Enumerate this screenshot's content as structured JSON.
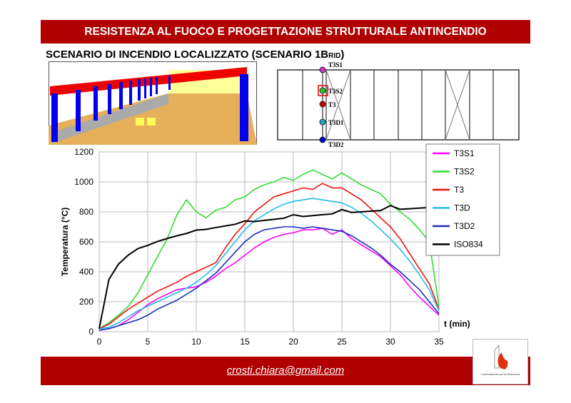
{
  "header": {
    "title": "RESISTENZA AL FUOCO E PROGETTAZIONE STRUTTURALE ANTINCENDIO"
  },
  "subtitle": {
    "main": "SCENARIO DI INCENDIO LOCALIZZATO (SCENARIO 1B",
    "sub": "RID",
    ")": ")"
  },
  "plan": {
    "labels": [
      "T3S1",
      "T3S2",
      "T3",
      "T3D1",
      "T3D2"
    ],
    "colors": [
      "#cc33cc",
      "#22cc22",
      "#cc0000",
      "#22aacc",
      "#0000cc"
    ]
  },
  "footer": {
    "email": "crosti.chiara@gmail.com",
    "logo_text": "Commissione per la Sicurezza delle Costruzioni in Acciaio in caso d'Incendio"
  },
  "chart_data": {
    "type": "line",
    "xlabel": "t (min)",
    "ylabel": "Temperatura (°C)",
    "xlim": [
      0,
      35
    ],
    "ylim": [
      0,
      1200
    ],
    "xticks": [
      0,
      5,
      10,
      15,
      20,
      25,
      30,
      35
    ],
    "yticks": [
      0,
      200,
      400,
      600,
      800,
      1000,
      1200
    ],
    "grid": true,
    "legend": "top-right",
    "x": [
      0,
      1,
      2,
      3,
      4,
      5,
      6,
      7,
      8,
      9,
      10,
      11,
      12,
      13,
      14,
      15,
      16,
      17,
      18,
      19,
      20,
      21,
      22,
      23,
      24,
      25,
      26,
      27,
      28,
      29,
      30,
      31,
      32,
      33,
      34,
      35
    ],
    "series": [
      {
        "name": "T3S1",
        "color": "#ff00ff",
        "values": [
          10,
          20,
          40,
          80,
          130,
          180,
          220,
          250,
          280,
          290,
          300,
          330,
          370,
          420,
          460,
          510,
          560,
          600,
          630,
          650,
          660,
          680,
          680,
          690,
          650,
          680,
          620,
          580,
          540,
          500,
          440,
          380,
          300,
          230,
          170,
          110
        ]
      },
      {
        "name": "T3S2",
        "color": "#33dd33",
        "values": [
          20,
          60,
          110,
          170,
          260,
          380,
          500,
          620,
          780,
          880,
          800,
          760,
          810,
          830,
          880,
          900,
          950,
          980,
          1000,
          1030,
          1010,
          1050,
          1080,
          1050,
          1020,
          1060,
          1020,
          980,
          950,
          920,
          850,
          800,
          750,
          680,
          600,
          170
        ]
      },
      {
        "name": "T3",
        "color": "#ee1111",
        "values": [
          20,
          50,
          100,
          150,
          190,
          230,
          270,
          300,
          330,
          370,
          400,
          430,
          460,
          560,
          650,
          720,
          800,
          850,
          900,
          920,
          940,
          960,
          950,
          990,
          960,
          960,
          920,
          880,
          820,
          760,
          700,
          620,
          520,
          420,
          320,
          150
        ]
      },
      {
        "name": "T3D",
        "color": "#22bbee",
        "values": [
          20,
          30,
          60,
          100,
          140,
          170,
          200,
          230,
          260,
          290,
          330,
          380,
          440,
          520,
          600,
          680,
          740,
          780,
          820,
          850,
          870,
          880,
          890,
          880,
          870,
          860,
          830,
          790,
          740,
          680,
          620,
          550,
          470,
          380,
          280,
          140
        ]
      },
      {
        "name": "T3D2",
        "color": "#1a2fbf",
        "values": [
          10,
          20,
          40,
          60,
          80,
          110,
          150,
          180,
          210,
          250,
          290,
          340,
          390,
          460,
          530,
          600,
          650,
          680,
          690,
          700,
          700,
          690,
          700,
          690,
          680,
          670,
          640,
          600,
          560,
          510,
          450,
          400,
          340,
          280,
          200,
          120
        ]
      },
      {
        "name": "ISO834",
        "color": "#000000",
        "values": [
          20,
          349,
          452,
          512,
          555,
          576,
          602,
          622,
          640,
          656,
          678,
          683,
          695,
          706,
          717,
          739,
          735,
          743,
          750,
          757,
          781,
          769,
          775,
          781,
          786,
          815,
          796,
          800,
          805,
          809,
          842,
          817,
          821,
          825,
          829,
          865
        ]
      }
    ]
  }
}
